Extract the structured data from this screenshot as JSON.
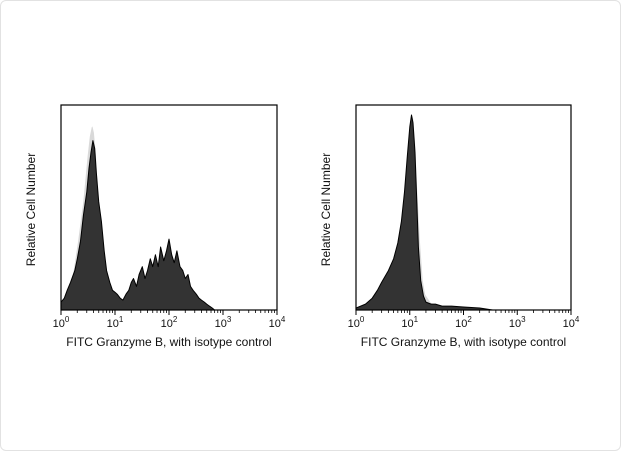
{
  "chart_data": [
    {
      "type": "area",
      "title": "",
      "xlabel": "FITC Granzyme B, with isotype control",
      "ylabel": "Relative Cell Number",
      "x_scale": "log",
      "xlim": [
        1,
        10000
      ],
      "ylim": [
        0,
        1
      ],
      "xticks": [
        {
          "base": "10",
          "exp": "0"
        },
        {
          "base": "10",
          "exp": "1"
        },
        {
          "base": "10",
          "exp": "2"
        },
        {
          "base": "10",
          "exp": "3"
        },
        {
          "base": "10",
          "exp": "4"
        }
      ],
      "series": [
        {
          "role": "isotype-control",
          "x": [
            1.0,
            1.2,
            1.5,
            2.0,
            2.5,
            3.0,
            3.3,
            3.6,
            3.9,
            4.2,
            4.6,
            5.0,
            5.6,
            6.3,
            7.0,
            8.0,
            9.0,
            10.0,
            11.0,
            12.0,
            14.0,
            16.0,
            20.0,
            25.0,
            30.0
          ],
          "values": [
            0.02,
            0.05,
            0.12,
            0.35,
            0.55,
            0.78,
            0.88,
            0.93,
            0.94,
            0.9,
            0.78,
            0.6,
            0.4,
            0.25,
            0.15,
            0.08,
            0.05,
            0.04,
            0.04,
            0.03,
            0.02,
            0.01,
            0.01,
            0.005,
            0.0
          ]
        },
        {
          "role": "granzyme-b",
          "x": [
            1.0,
            1.15,
            1.3,
            1.5,
            1.8,
            2.0,
            2.3,
            2.6,
            3.0,
            3.3,
            3.6,
            3.9,
            4.2,
            4.5,
            5.0,
            5.6,
            6.3,
            7.0,
            8.0,
            9.0,
            10.0,
            11.0,
            12.5,
            14.0,
            16.0,
            18.0,
            20.0,
            22.0,
            25.0,
            28.0,
            32.0,
            36.0,
            40.0,
            45.0,
            50.0,
            56.0,
            63.0,
            70.0,
            80.0,
            90.0,
            100.0,
            112.0,
            125.0,
            140.0,
            160.0,
            180.0,
            200.0,
            225.0,
            250.0,
            280.0,
            320.0,
            360.0,
            400.0,
            450.0,
            500.0,
            560.0,
            630.0,
            700.0
          ],
          "values": [
            0.04,
            0.06,
            0.1,
            0.14,
            0.2,
            0.26,
            0.35,
            0.48,
            0.6,
            0.72,
            0.8,
            0.86,
            0.82,
            0.7,
            0.55,
            0.45,
            0.3,
            0.2,
            0.14,
            0.1,
            0.09,
            0.08,
            0.06,
            0.05,
            0.08,
            0.1,
            0.14,
            0.16,
            0.12,
            0.18,
            0.22,
            0.16,
            0.2,
            0.26,
            0.22,
            0.28,
            0.22,
            0.32,
            0.25,
            0.3,
            0.36,
            0.28,
            0.24,
            0.3,
            0.22,
            0.2,
            0.16,
            0.18,
            0.12,
            0.1,
            0.08,
            0.06,
            0.05,
            0.04,
            0.03,
            0.02,
            0.01,
            0.0
          ]
        }
      ]
    },
    {
      "type": "area",
      "title": "",
      "xlabel": "FITC Granzyme B, with isotype control",
      "ylabel": "Relative Cell Number",
      "x_scale": "log",
      "xlim": [
        1,
        10000
      ],
      "ylim": [
        0,
        1
      ],
      "xticks": [
        {
          "base": "10",
          "exp": "0"
        },
        {
          "base": "10",
          "exp": "1"
        },
        {
          "base": "10",
          "exp": "2"
        },
        {
          "base": "10",
          "exp": "3"
        },
        {
          "base": "10",
          "exp": "4"
        }
      ],
      "series": [
        {
          "role": "isotype-control",
          "x": [
            1.0,
            1.5,
            2.0,
            2.5,
            3.0,
            4.0,
            5.0,
            6.0,
            7.0,
            8.0,
            9.0,
            10.0,
            11.0,
            12.0,
            13.0,
            14.0,
            16.0,
            18.0,
            20.0,
            25.0,
            30.0,
            40.0,
            60.0,
            100.0,
            200.0,
            350.0
          ],
          "values": [
            0.01,
            0.03,
            0.05,
            0.08,
            0.12,
            0.18,
            0.24,
            0.32,
            0.45,
            0.62,
            0.82,
            0.95,
            1.0,
            0.97,
            0.85,
            0.65,
            0.35,
            0.15,
            0.08,
            0.04,
            0.03,
            0.02,
            0.02,
            0.015,
            0.01,
            0.0
          ]
        },
        {
          "role": "granzyme-b",
          "x": [
            1.0,
            1.5,
            2.0,
            2.5,
            3.0,
            4.0,
            5.0,
            6.0,
            7.0,
            8.0,
            9.0,
            10.0,
            10.8,
            11.5,
            12.5,
            13.5,
            14.5,
            16.0,
            18.0,
            20.0,
            25.0,
            30.0,
            40.0,
            60.0,
            100.0,
            200.0,
            350.0
          ],
          "values": [
            0.01,
            0.03,
            0.06,
            0.1,
            0.14,
            0.2,
            0.26,
            0.34,
            0.45,
            0.6,
            0.78,
            0.93,
            0.99,
            0.95,
            0.8,
            0.55,
            0.32,
            0.15,
            0.07,
            0.04,
            0.03,
            0.03,
            0.02,
            0.02,
            0.015,
            0.01,
            0.0
          ]
        }
      ]
    }
  ],
  "colors": {
    "isotype_fill": "#d9d9d9",
    "isotype_line": "#ffffff",
    "sample_fill": "#333333",
    "sample_line": "#000000",
    "axis": "#000000"
  }
}
